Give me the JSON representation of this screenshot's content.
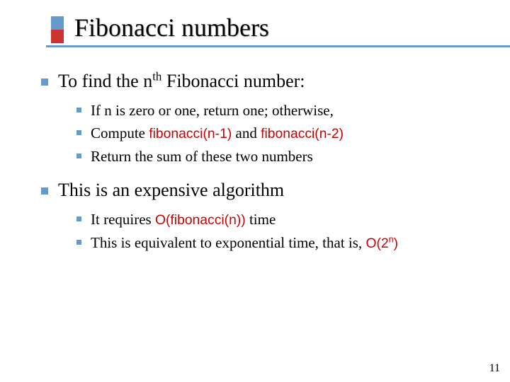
{
  "title": "Fibonacci numbers",
  "colors": {
    "accent_blue": "#6699cc",
    "accent_red": "#cc3333",
    "code_red": "#cc0000",
    "text": "#000000",
    "background": "#ffffff"
  },
  "typography": {
    "title_fontsize": 36,
    "lvl1_fontsize": 26,
    "lvl2_fontsize": 21,
    "body_font": "Times New Roman",
    "code_font": "Verdana"
  },
  "bullets": [
    {
      "text_pre": "To find the n",
      "text_sup": "th",
      "text_post": " Fibonacci number:",
      "sub": [
        {
          "plain": "If n is zero or one, return one; otherwise,"
        },
        {
          "pre": "Compute ",
          "code1": "fibonacci(n-1)",
          "mid": " and ",
          "code2": "fibonacci(n-2)"
        },
        {
          "plain": "Return the sum of these two numbers"
        }
      ]
    },
    {
      "text": "This is an expensive algorithm",
      "sub": [
        {
          "pre": "It requires ",
          "code1": "O(fibonacci(n))",
          "post": " time"
        },
        {
          "pre": "This is equivalent to exponential time, that is, ",
          "code_pre": "O(2",
          "code_sup": "n",
          "code_post": ")"
        }
      ]
    }
  ],
  "page_number": "11"
}
